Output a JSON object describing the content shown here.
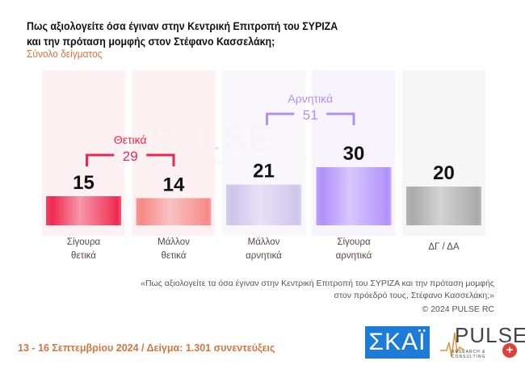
{
  "title_line1": "Πως αξιολογείτε όσα έγιναν στην Κεντρική Επιτροπή του ΣΥΡΙΖΑ",
  "title_line2": "και την πρόταση μομφής στον Στέφανο Κασσελάκη;",
  "subtitle": "Σύνολο δείγματος",
  "chart_data": {
    "type": "bar",
    "title": "Πως αξιολογείτε όσα έγιναν στην Κεντρική Επιτροπή του ΣΥΡΙΖΑ και την πρόταση μομφής στον Στέφανο Κασσελάκη;",
    "categories": [
      [
        "Σίγουρα",
        "θετικά"
      ],
      [
        "Μάλλον",
        "θετικά"
      ],
      [
        "Μάλλον",
        "αρνητικά"
      ],
      [
        "Σίγουρα",
        "αρνητικά"
      ],
      [
        "ΔΓ / ΔΑ"
      ]
    ],
    "values": [
      15,
      14,
      21,
      30,
      20
    ],
    "colors": [
      "#f0284f",
      "#f58a86",
      "#cfc6ec",
      "#b190fb",
      "#a9a9a9"
    ],
    "panel_colors": [
      "#fdf0f2",
      "#fdf0f2",
      "#f8f6fc",
      "#f6f3fd",
      "#f5f5f5"
    ],
    "groups": [
      {
        "label": "Θετικά",
        "total": 29,
        "from": 0,
        "to": 1,
        "color": "#e8294f"
      },
      {
        "label": "Αρνητικά",
        "total": 51,
        "from": 2,
        "to": 3,
        "color": "#b190fb"
      }
    ],
    "ylim": [
      0,
      50
    ],
    "xlabel": "",
    "ylabel": ""
  },
  "watermark": {
    "text": "PULSE",
    "sub": "RESEARCH & CONSULTING"
  },
  "footer": {
    "quote_line1": "«Πως αξιολογείτε τα όσα έγιναν στην Κεντρική Επιτροπή του ΣΥΡΙΖΑ και την πρόταση μομφής",
    "quote_line2": "στον πρόεδρό τους, Στέφανο Κασσελάκη;»",
    "copyright": "© 2024 PULSE RC",
    "date_sample": "13 - 16 Σεπτεμβρίου 2024  /  Δείγμα:  1.301 συνεντεύξεις",
    "skai_logo": "ΣΚΑΪ",
    "pulse_logo": "PULSE",
    "pulse_logo_sub": "RESEARCH & CONSULTING"
  }
}
